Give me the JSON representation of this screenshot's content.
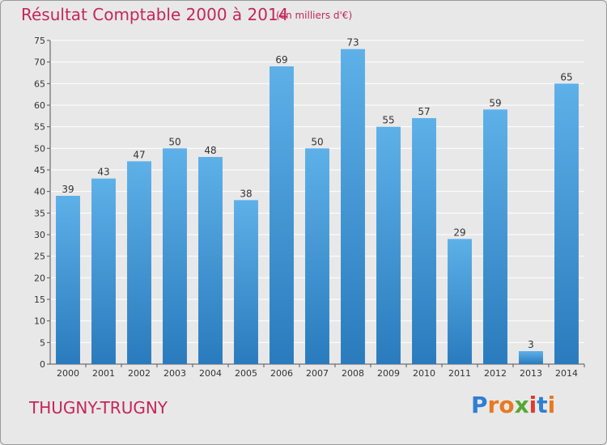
{
  "chart_data": {
    "type": "bar",
    "title": "Résultat Comptable 2000 à 2014",
    "subtitle": "(en milliers d'€)",
    "categories": [
      "2000",
      "2001",
      "2002",
      "2003",
      "2004",
      "2005",
      "2006",
      "2007",
      "2008",
      "2009",
      "2010",
      "2011",
      "2012",
      "2013",
      "2014"
    ],
    "values": [
      39,
      43,
      47,
      50,
      48,
      38,
      69,
      50,
      73,
      55,
      57,
      29,
      59,
      3,
      65
    ],
    "ylim": [
      0,
      75
    ],
    "yticks": [
      0,
      5,
      10,
      15,
      20,
      25,
      30,
      35,
      40,
      45,
      50,
      55,
      60,
      65,
      70,
      75
    ],
    "xlabel": "",
    "ylabel": "",
    "grid": true,
    "colors": {
      "bar_top": "#5eb0e8",
      "bar_bottom": "#2a7bbd",
      "grid": "#ffffff",
      "title": "#c5265a"
    }
  },
  "footer": {
    "place": "THUGNY-TRUGNY",
    "logo_letters": [
      {
        "ch": "P",
        "color": "#2f7fd1"
      },
      {
        "ch": "r",
        "color": "#e8791e"
      },
      {
        "ch": "o",
        "color": "#e8791e"
      },
      {
        "ch": "x",
        "color": "#55a831"
      },
      {
        "ch": "i",
        "color": "#e23a2e"
      },
      {
        "ch": "t",
        "color": "#2f7fd1"
      },
      {
        "ch": "i",
        "color": "#e8791e"
      }
    ]
  }
}
